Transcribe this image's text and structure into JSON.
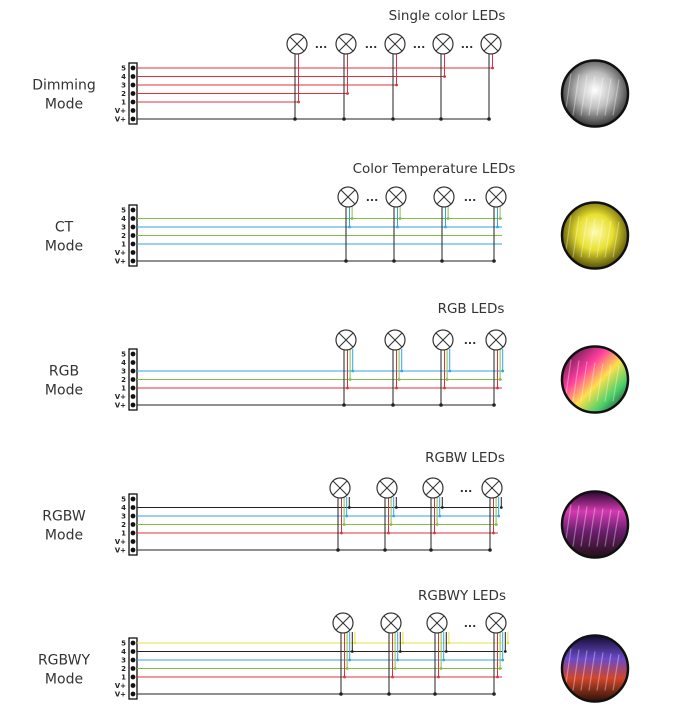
{
  "colors": {
    "red": "#e0323e",
    "blue": "#33a6df",
    "green": "#7fc145",
    "yellow": "#e6e04a",
    "black": "#222222",
    "lamp_stroke": "#333333"
  },
  "panels": [
    {
      "mode_lines": [
        "Dimming",
        "Mode"
      ],
      "title": "Single color LEDs",
      "pins": [
        "5",
        "4",
        "3",
        "2",
        "1",
        "V+",
        "V+"
      ],
      "ellipsis": "...",
      "wire_colors": [
        "red",
        "red",
        "red",
        "red",
        "red"
      ],
      "lamps": [
        {
          "signal": "5",
          "color": "red"
        },
        {
          "signal": "4",
          "color": "red"
        },
        {
          "signal": "3",
          "color": "red"
        },
        {
          "signal": "2",
          "color": "red"
        },
        {
          "signal": "1",
          "color": "red"
        }
      ],
      "photo": {
        "theme": "white",
        "icon": "building-photo-white"
      }
    },
    {
      "mode_lines": [
        "CT",
        "Mode"
      ],
      "title": "Color Temperature LEDs",
      "pins": [
        "5",
        "4",
        "3",
        "2",
        "1",
        "V+",
        "V+"
      ],
      "ellipsis": "...",
      "wire_colors": [
        null,
        "green",
        "blue",
        "green",
        "blue"
      ],
      "lamps": [
        {
          "signals": [
            "1",
            "2"
          ],
          "colors": [
            "blue",
            "green"
          ]
        },
        {
          "signals": [
            "3",
            "4"
          ],
          "colors": [
            "blue",
            "green"
          ]
        },
        {
          "signals": [
            "1",
            "2"
          ],
          "colors": [
            "blue",
            "green"
          ]
        },
        {
          "signals": [
            "3",
            "4"
          ],
          "colors": [
            "blue",
            "green"
          ]
        }
      ],
      "photo": {
        "theme": "yellow",
        "icon": "building-photo-yellow"
      }
    },
    {
      "mode_lines": [
        "RGB",
        "Mode"
      ],
      "title": "RGB LEDs",
      "pins": [
        "5",
        "4",
        "3",
        "2",
        "1",
        "V+",
        "V+"
      ],
      "ellipsis": "...",
      "wire_colors": [
        null,
        null,
        "blue",
        "green",
        "red"
      ],
      "lamps": [
        {
          "colors": [
            "red",
            "green",
            "blue"
          ]
        },
        {
          "colors": [
            "red",
            "green",
            "blue"
          ]
        },
        {
          "colors": [
            "red",
            "green",
            "blue"
          ]
        },
        {
          "colors": [
            "red",
            "green",
            "blue"
          ]
        }
      ],
      "photo": {
        "theme": "rgb",
        "icon": "building-photo-rgb"
      }
    },
    {
      "mode_lines": [
        "RGBW",
        "Mode"
      ],
      "title": "RGBW LEDs",
      "pins": [
        "5",
        "4",
        "3",
        "2",
        "1",
        "V+",
        "V+"
      ],
      "ellipsis": "...",
      "wire_colors": [
        null,
        "black",
        "blue",
        "green",
        "red"
      ],
      "lamps": [
        {
          "colors": [
            "red",
            "green",
            "blue",
            "black"
          ]
        },
        {
          "colors": [
            "red",
            "green",
            "blue",
            "black"
          ]
        },
        {
          "colors": [
            "red",
            "green",
            "blue",
            "black"
          ]
        },
        {
          "colors": [
            "red",
            "green",
            "blue",
            "black"
          ]
        }
      ],
      "photo": {
        "theme": "rgbw",
        "icon": "building-photo-rgbw"
      }
    },
    {
      "mode_lines": [
        "RGBWY",
        "Mode"
      ],
      "title": "RGBWY LEDs",
      "pins": [
        "5",
        "4",
        "3",
        "2",
        "1",
        "V+",
        "V+"
      ],
      "ellipsis": "...",
      "wire_colors": [
        "yellow",
        "black",
        "blue",
        "green",
        "red"
      ],
      "lamps": [
        {
          "colors": [
            "red",
            "green",
            "blue",
            "black",
            "yellow"
          ]
        },
        {
          "colors": [
            "red",
            "green",
            "blue",
            "black",
            "yellow"
          ]
        },
        {
          "colors": [
            "red",
            "green",
            "blue",
            "black",
            "yellow"
          ]
        },
        {
          "colors": [
            "red",
            "green",
            "blue",
            "black",
            "yellow"
          ]
        }
      ],
      "photo": {
        "theme": "rgbwy",
        "icon": "building-photo-rgbwy"
      }
    }
  ]
}
